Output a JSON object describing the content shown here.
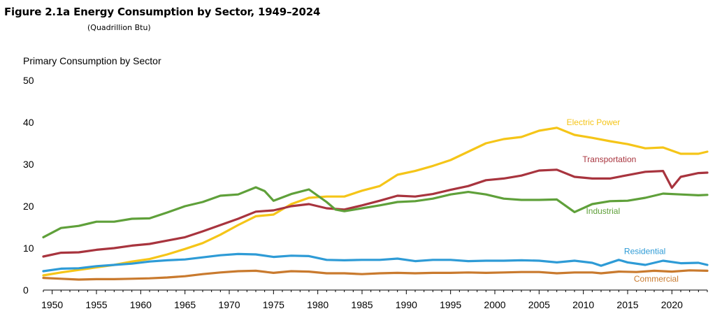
{
  "figure": {
    "title": "Figure 2.1a  Energy Consumption by Sector, 1949–2024",
    "unit": "(Quadrillion Btu)",
    "panel_title": "Primary Consumption by Sector"
  },
  "chart_data": {
    "type": "line",
    "title": "Energy Consumption by Sector, 1949–2024",
    "subtitle": "(Quadrillion Btu)",
    "ylabel": "Primary Consumption by Sector",
    "xlabel": "",
    "xlim": [
      1949,
      2024
    ],
    "ylim": [
      0,
      50
    ],
    "x_ticks": [
      1950,
      1955,
      1960,
      1965,
      1970,
      1975,
      1980,
      1985,
      1990,
      1995,
      2000,
      2005,
      2010,
      2015,
      2020
    ],
    "y_ticks": [
      0,
      10,
      20,
      30,
      40,
      50
    ],
    "grid": false,
    "legend": "inline labels",
    "series": [
      {
        "name": "Electric Power",
        "color": "#F5C518",
        "x": [
          1949,
          1951,
          1953,
          1955,
          1957,
          1959,
          1961,
          1963,
          1965,
          1967,
          1969,
          1971,
          1973,
          1975,
          1977,
          1979,
          1981,
          1983,
          1985,
          1987,
          1989,
          1991,
          1993,
          1995,
          1997,
          1999,
          2001,
          2003,
          2005,
          2007,
          2009,
          2011,
          2013,
          2015,
          2017,
          2019,
          2021,
          2023,
          2024
        ],
        "y": [
          3.5,
          4.2,
          4.8,
          5.4,
          6.0,
          6.8,
          7.4,
          8.5,
          9.8,
          11.2,
          13.2,
          15.5,
          17.6,
          18.0,
          20.5,
          22.0,
          22.3,
          22.3,
          23.7,
          24.8,
          27.5,
          28.4,
          29.6,
          31.0,
          33.0,
          35.0,
          36.0,
          36.5,
          38.0,
          38.7,
          37.0,
          36.3,
          35.5,
          34.8,
          33.8,
          34.0,
          32.5,
          32.5,
          33.0
        ]
      },
      {
        "name": "Transportation",
        "color": "#A8343E",
        "x": [
          1949,
          1951,
          1953,
          1955,
          1957,
          1959,
          1961,
          1963,
          1965,
          1967,
          1969,
          1971,
          1973,
          1975,
          1977,
          1979,
          1981,
          1983,
          1985,
          1987,
          1989,
          1991,
          1993,
          1995,
          1997,
          1999,
          2001,
          2003,
          2005,
          2007,
          2009,
          2011,
          2013,
          2015,
          2017,
          2019,
          2020,
          2021,
          2023,
          2024
        ],
        "y": [
          8.0,
          8.9,
          9.0,
          9.6,
          10.0,
          10.6,
          11.0,
          11.8,
          12.6,
          14.0,
          15.5,
          17.0,
          18.7,
          19.0,
          20.0,
          20.5,
          19.5,
          19.2,
          20.2,
          21.3,
          22.5,
          22.3,
          22.9,
          23.9,
          24.8,
          26.2,
          26.6,
          27.3,
          28.5,
          28.7,
          27.0,
          26.6,
          26.6,
          27.4,
          28.2,
          28.4,
          24.4,
          27.0,
          27.9,
          28.0
        ]
      },
      {
        "name": "Industrial",
        "color": "#5FA03A",
        "x": [
          1949,
          1951,
          1953,
          1955,
          1957,
          1959,
          1961,
          1963,
          1965,
          1967,
          1969,
          1971,
          1973,
          1974,
          1975,
          1977,
          1979,
          1981,
          1982,
          1983,
          1985,
          1987,
          1989,
          1991,
          1993,
          1995,
          1997,
          1999,
          2001,
          2003,
          2005,
          2007,
          2009,
          2011,
          2013,
          2015,
          2017,
          2019,
          2021,
          2023,
          2024
        ],
        "y": [
          12.6,
          14.8,
          15.3,
          16.3,
          16.3,
          17.0,
          17.1,
          18.5,
          20.0,
          21.0,
          22.5,
          22.8,
          24.5,
          23.6,
          21.3,
          22.9,
          24.0,
          21.0,
          19.2,
          18.8,
          19.5,
          20.2,
          21.0,
          21.2,
          21.8,
          22.8,
          23.4,
          22.8,
          21.8,
          21.5,
          21.5,
          21.6,
          18.6,
          20.5,
          21.2,
          21.3,
          22.0,
          23.0,
          22.8,
          22.6,
          22.7
        ]
      },
      {
        "name": "Residential",
        "color": "#2E9BD6",
        "x": [
          1949,
          1951,
          1953,
          1955,
          1957,
          1959,
          1961,
          1963,
          1965,
          1967,
          1969,
          1971,
          1973,
          1975,
          1977,
          1979,
          1981,
          1983,
          1985,
          1987,
          1989,
          1991,
          1993,
          1995,
          1997,
          1999,
          2001,
          2003,
          2005,
          2007,
          2009,
          2011,
          2012,
          2014,
          2015,
          2017,
          2019,
          2021,
          2023,
          2024
        ],
        "y": [
          4.5,
          5.1,
          5.2,
          5.7,
          6.0,
          6.3,
          6.8,
          7.1,
          7.3,
          7.8,
          8.3,
          8.6,
          8.5,
          7.9,
          8.2,
          8.1,
          7.2,
          7.1,
          7.2,
          7.2,
          7.5,
          6.9,
          7.2,
          7.2,
          6.9,
          7.0,
          7.0,
          7.1,
          7.0,
          6.6,
          7.0,
          6.5,
          5.8,
          7.2,
          6.6,
          6.0,
          7.0,
          6.4,
          6.5,
          6.0
        ]
      },
      {
        "name": "Commercial",
        "color": "#C97A2E",
        "x": [
          1949,
          1951,
          1953,
          1955,
          1957,
          1959,
          1961,
          1963,
          1965,
          1967,
          1969,
          1971,
          1973,
          1975,
          1977,
          1979,
          1981,
          1983,
          1985,
          1987,
          1989,
          1991,
          1993,
          1995,
          1997,
          1999,
          2001,
          2003,
          2005,
          2007,
          2009,
          2011,
          2012,
          2014,
          2016,
          2018,
          2020,
          2022,
          2024
        ],
        "y": [
          2.9,
          2.7,
          2.5,
          2.6,
          2.6,
          2.7,
          2.8,
          3.0,
          3.3,
          3.8,
          4.2,
          4.5,
          4.6,
          4.1,
          4.5,
          4.4,
          4.0,
          4.0,
          3.8,
          4.0,
          4.1,
          4.0,
          4.1,
          4.1,
          4.2,
          4.1,
          4.2,
          4.3,
          4.3,
          4.0,
          4.2,
          4.2,
          4.0,
          4.4,
          4.3,
          4.6,
          4.4,
          4.7,
          4.6
        ]
      }
    ]
  }
}
